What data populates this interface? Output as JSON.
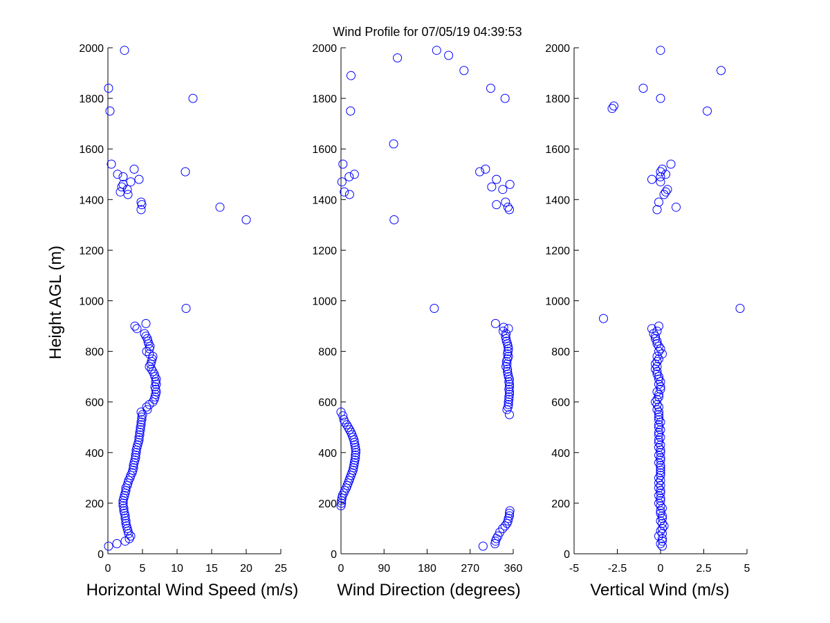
{
  "figure": {
    "title": "Wind Profile for  07/05/19 04:39:53",
    "marker_color": "#0000ff",
    "marker": "open-circle"
  },
  "chart_data": [
    {
      "type": "scatter",
      "id": "speed",
      "xlabel": "Horizontal Wind Speed (m/s)",
      "ylabel": "Height AGL (m)",
      "xlim": [
        0,
        25
      ],
      "ylim": [
        0,
        2000
      ],
      "xticks": [
        0,
        5,
        10,
        15,
        20,
        25
      ],
      "xtick_labels": [
        "0",
        "5",
        "10",
        "15",
        "20",
        "25"
      ],
      "yticks": [
        0,
        200,
        400,
        600,
        800,
        1000,
        1200,
        1400,
        1600,
        1800,
        2000
      ],
      "ytick_labels": [
        "0",
        "200",
        "400",
        "600",
        "800",
        "1000",
        "1200",
        "1400",
        "1600",
        "1800",
        "2000"
      ],
      "grid": false,
      "points": [
        [
          0.1,
          30
        ],
        [
          1.3,
          40
        ],
        [
          2.5,
          50
        ],
        [
          3.1,
          60
        ],
        [
          3.3,
          70
        ],
        [
          3.0,
          80
        ],
        [
          2.9,
          90
        ],
        [
          2.8,
          100
        ],
        [
          2.7,
          110
        ],
        [
          2.6,
          120
        ],
        [
          2.6,
          130
        ],
        [
          2.5,
          140
        ],
        [
          2.5,
          150
        ],
        [
          2.4,
          160
        ],
        [
          2.3,
          170
        ],
        [
          2.3,
          180
        ],
        [
          2.2,
          190
        ],
        [
          2.2,
          200
        ],
        [
          2.2,
          210
        ],
        [
          2.3,
          220
        ],
        [
          2.4,
          230
        ],
        [
          2.5,
          240
        ],
        [
          2.6,
          250
        ],
        [
          2.6,
          260
        ],
        [
          2.8,
          270
        ],
        [
          2.9,
          280
        ],
        [
          3.0,
          290
        ],
        [
          3.2,
          300
        ],
        [
          3.3,
          310
        ],
        [
          3.5,
          320
        ],
        [
          3.6,
          330
        ],
        [
          3.7,
          340
        ],
        [
          3.7,
          350
        ],
        [
          3.8,
          360
        ],
        [
          3.9,
          370
        ],
        [
          4.0,
          380
        ],
        [
          4.0,
          390
        ],
        [
          4.1,
          400
        ],
        [
          4.1,
          410
        ],
        [
          4.2,
          420
        ],
        [
          4.3,
          430
        ],
        [
          4.4,
          440
        ],
        [
          4.5,
          450
        ],
        [
          4.5,
          460
        ],
        [
          4.6,
          470
        ],
        [
          4.6,
          480
        ],
        [
          4.7,
          490
        ],
        [
          4.7,
          500
        ],
        [
          4.8,
          510
        ],
        [
          4.8,
          520
        ],
        [
          4.9,
          530
        ],
        [
          4.9,
          540
        ],
        [
          5.0,
          550
        ],
        [
          4.8,
          560
        ],
        [
          5.7,
          570
        ],
        [
          5.6,
          580
        ],
        [
          6.0,
          590
        ],
        [
          6.5,
          600
        ],
        [
          6.7,
          610
        ],
        [
          6.8,
          620
        ],
        [
          6.9,
          630
        ],
        [
          7.0,
          640
        ],
        [
          6.9,
          650
        ],
        [
          6.8,
          660
        ],
        [
          7.0,
          670
        ],
        [
          6.9,
          680
        ],
        [
          7.0,
          690
        ],
        [
          6.8,
          700
        ],
        [
          6.7,
          710
        ],
        [
          6.5,
          720
        ],
        [
          6.3,
          730
        ],
        [
          6.0,
          740
        ],
        [
          6.2,
          750
        ],
        [
          6.3,
          760
        ],
        [
          6.4,
          770
        ],
        [
          6.5,
          780
        ],
        [
          6.0,
          790
        ],
        [
          5.6,
          800
        ],
        [
          6.0,
          810
        ],
        [
          6.1,
          820
        ],
        [
          5.9,
          830
        ],
        [
          5.8,
          840
        ],
        [
          5.7,
          850
        ],
        [
          5.5,
          860
        ],
        [
          5.3,
          870
        ],
        [
          4.2,
          890
        ],
        [
          3.9,
          900
        ],
        [
          5.5,
          910
        ],
        [
          11.3,
          970
        ],
        [
          20.0,
          1320
        ],
        [
          4.8,
          1360
        ],
        [
          16.2,
          1370
        ],
        [
          4.9,
          1380
        ],
        [
          4.8,
          1390
        ],
        [
          2.9,
          1420
        ],
        [
          1.8,
          1430
        ],
        [
          2.8,
          1440
        ],
        [
          2.0,
          1450
        ],
        [
          2.2,
          1460
        ],
        [
          3.3,
          1470
        ],
        [
          4.5,
          1480
        ],
        [
          2.2,
          1490
        ],
        [
          1.4,
          1500
        ],
        [
          11.2,
          1510
        ],
        [
          3.8,
          1520
        ],
        [
          0.5,
          1540
        ],
        [
          0.3,
          1750
        ],
        [
          12.3,
          1800
        ],
        [
          0.1,
          1840
        ],
        [
          2.4,
          1990
        ]
      ]
    },
    {
      "type": "scatter",
      "id": "direction",
      "xlabel": "Wind Direction (degrees)",
      "ylabel": "",
      "xlim": [
        0,
        360
      ],
      "ylim": [
        0,
        2000
      ],
      "xticks": [
        0,
        90,
        180,
        270,
        360
      ],
      "xtick_labels": [
        "0",
        "90",
        "180",
        "270",
        "360"
      ],
      "yticks": [
        0,
        200,
        400,
        600,
        800,
        1000,
        1200,
        1400,
        1600,
        1800,
        2000
      ],
      "ytick_labels": [
        "0",
        "200",
        "400",
        "600",
        "800",
        "1000",
        "1200",
        "1400",
        "1600",
        "1800",
        "2000"
      ],
      "grid": false,
      "points": [
        [
          297,
          30
        ],
        [
          322,
          40
        ],
        [
          323,
          50
        ],
        [
          325,
          60
        ],
        [
          328,
          70
        ],
        [
          332,
          85
        ],
        [
          338,
          100
        ],
        [
          343,
          110
        ],
        [
          347,
          120
        ],
        [
          349,
          130
        ],
        [
          350,
          140
        ],
        [
          352,
          150
        ],
        [
          352,
          160
        ],
        [
          353,
          170
        ],
        [
          0,
          190
        ],
        [
          1,
          200
        ],
        [
          1,
          210
        ],
        [
          2,
          220
        ],
        [
          3,
          230
        ],
        [
          6,
          240
        ],
        [
          8,
          250
        ],
        [
          11,
          260
        ],
        [
          13,
          270
        ],
        [
          15,
          280
        ],
        [
          17,
          290
        ],
        [
          19,
          300
        ],
        [
          21,
          310
        ],
        [
          23,
          320
        ],
        [
          25,
          330
        ],
        [
          26,
          340
        ],
        [
          27,
          350
        ],
        [
          28,
          360
        ],
        [
          29,
          370
        ],
        [
          30,
          380
        ],
        [
          30,
          390
        ],
        [
          31,
          400
        ],
        [
          31,
          410
        ],
        [
          30,
          420
        ],
        [
          29,
          430
        ],
        [
          28,
          440
        ],
        [
          27,
          450
        ],
        [
          25,
          460
        ],
        [
          23,
          470
        ],
        [
          21,
          480
        ],
        [
          18,
          490
        ],
        [
          15,
          500
        ],
        [
          12,
          510
        ],
        [
          8,
          520
        ],
        [
          6,
          530
        ],
        [
          4,
          545
        ],
        [
          0,
          560
        ],
        [
          352,
          550
        ],
        [
          347,
          570
        ],
        [
          349,
          580
        ],
        [
          350,
          590
        ],
        [
          350,
          600
        ],
        [
          351,
          610
        ],
        [
          351,
          620
        ],
        [
          352,
          630
        ],
        [
          352,
          640
        ],
        [
          351,
          650
        ],
        [
          352,
          660
        ],
        [
          352,
          670
        ],
        [
          351,
          680
        ],
        [
          352,
          690
        ],
        [
          350,
          700
        ],
        [
          349,
          710
        ],
        [
          348,
          720
        ],
        [
          348,
          730
        ],
        [
          345,
          740
        ],
        [
          347,
          750
        ],
        [
          346,
          760
        ],
        [
          348,
          770
        ],
        [
          350,
          780
        ],
        [
          348,
          790
        ],
        [
          349,
          800
        ],
        [
          350,
          810
        ],
        [
          349,
          820
        ],
        [
          348,
          830
        ],
        [
          346,
          840
        ],
        [
          345,
          850
        ],
        [
          344,
          860
        ],
        [
          345,
          870
        ],
        [
          339,
          880
        ],
        [
          350,
          890
        ],
        [
          340,
          895
        ],
        [
          323,
          910
        ],
        [
          195,
          970
        ],
        [
          111,
          1320
        ],
        [
          352,
          1360
        ],
        [
          349,
          1370
        ],
        [
          325,
          1380
        ],
        [
          344,
          1390
        ],
        [
          18,
          1420
        ],
        [
          338,
          1440
        ],
        [
          7,
          1430
        ],
        [
          315,
          1450
        ],
        [
          353,
          1460
        ],
        [
          2,
          1470
        ],
        [
          325,
          1480
        ],
        [
          17,
          1490
        ],
        [
          28,
          1500
        ],
        [
          290,
          1510
        ],
        [
          302,
          1520
        ],
        [
          4,
          1540
        ],
        [
          110,
          1620
        ],
        [
          20,
          1750
        ],
        [
          343,
          1800
        ],
        [
          313,
          1840
        ],
        [
          21,
          1890
        ],
        [
          257,
          1910
        ],
        [
          118,
          1960
        ],
        [
          225,
          1970
        ],
        [
          200,
          1990
        ]
      ]
    },
    {
      "type": "scatter",
      "id": "vertical",
      "xlabel": "Vertical Wind (m/s)",
      "ylabel": "",
      "xlim": [
        -5,
        5
      ],
      "ylim": [
        0,
        2000
      ],
      "xticks": [
        -5,
        -2.5,
        0,
        2.5,
        5
      ],
      "xtick_labels": [
        "-5",
        "-2.5",
        "0",
        "2.5",
        "5"
      ],
      "yticks": [
        0,
        200,
        400,
        600,
        800,
        1000,
        1200,
        1400,
        1600,
        1800,
        2000
      ],
      "ytick_labels": [
        "0",
        "200",
        "400",
        "600",
        "800",
        "1000",
        "1200",
        "1400",
        "1600",
        "1800",
        "2000"
      ],
      "grid": false,
      "points": [
        [
          0.1,
          30
        ],
        [
          0.0,
          40
        ],
        [
          0.1,
          50
        ],
        [
          0.1,
          60
        ],
        [
          -0.1,
          70
        ],
        [
          0.1,
          80
        ],
        [
          0.0,
          90
        ],
        [
          0.1,
          100
        ],
        [
          0.2,
          110
        ],
        [
          0.1,
          120
        ],
        [
          0.0,
          130
        ],
        [
          0.1,
          140
        ],
        [
          0.1,
          150
        ],
        [
          0.0,
          160
        ],
        [
          0.0,
          170
        ],
        [
          0.1,
          180
        ],
        [
          0.0,
          190
        ],
        [
          -0.1,
          200
        ],
        [
          0.0,
          210
        ],
        [
          0.0,
          220
        ],
        [
          -0.1,
          230
        ],
        [
          0.0,
          240
        ],
        [
          0.0,
          250
        ],
        [
          -0.1,
          260
        ],
        [
          0.0,
          270
        ],
        [
          -0.1,
          280
        ],
        [
          0.0,
          290
        ],
        [
          -0.1,
          300
        ],
        [
          0.0,
          310
        ],
        [
          0.0,
          320
        ],
        [
          0.0,
          330
        ],
        [
          0.0,
          340
        ],
        [
          0.0,
          350
        ],
        [
          -0.1,
          360
        ],
        [
          0.0,
          370
        ],
        [
          0.0,
          380
        ],
        [
          -0.1,
          390
        ],
        [
          0.0,
          400
        ],
        [
          0.0,
          410
        ],
        [
          -0.1,
          420
        ],
        [
          0.0,
          430
        ],
        [
          -0.1,
          440
        ],
        [
          -0.1,
          450
        ],
        [
          0.0,
          460
        ],
        [
          -0.1,
          470
        ],
        [
          -0.1,
          480
        ],
        [
          0.0,
          490
        ],
        [
          -0.1,
          500
        ],
        [
          -0.1,
          510
        ],
        [
          0.0,
          520
        ],
        [
          -0.1,
          530
        ],
        [
          -0.1,
          540
        ],
        [
          -0.1,
          550
        ],
        [
          -0.1,
          560
        ],
        [
          -0.2,
          570
        ],
        [
          -0.1,
          580
        ],
        [
          -0.2,
          590
        ],
        [
          -0.3,
          600
        ],
        [
          -0.2,
          610
        ],
        [
          -0.1,
          620
        ],
        [
          -0.1,
          630
        ],
        [
          -0.2,
          640
        ],
        [
          0.0,
          650
        ],
        [
          0.0,
          660
        ],
        [
          -0.1,
          670
        ],
        [
          0.0,
          680
        ],
        [
          -0.1,
          690
        ],
        [
          -0.1,
          700
        ],
        [
          -0.2,
          710
        ],
        [
          -0.2,
          720
        ],
        [
          -0.3,
          730
        ],
        [
          -0.2,
          740
        ],
        [
          -0.3,
          750
        ],
        [
          -0.2,
          760
        ],
        [
          -0.1,
          770
        ],
        [
          -0.2,
          780
        ],
        [
          0.1,
          790
        ],
        [
          -0.1,
          800
        ],
        [
          0.0,
          810
        ],
        [
          -0.1,
          820
        ],
        [
          -0.2,
          830
        ],
        [
          -0.2,
          840
        ],
        [
          -0.3,
          850
        ],
        [
          -0.3,
          860
        ],
        [
          -0.4,
          870
        ],
        [
          -0.2,
          880
        ],
        [
          -0.5,
          890
        ],
        [
          -0.1,
          900
        ],
        [
          -3.3,
          930
        ],
        [
          4.6,
          970
        ],
        [
          -0.2,
          1360
        ],
        [
          0.9,
          1370
        ],
        [
          -0.1,
          1390
        ],
        [
          0.2,
          1420
        ],
        [
          0.4,
          1440
        ],
        [
          0.3,
          1430
        ],
        [
          0.0,
          1470
        ],
        [
          -0.5,
          1480
        ],
        [
          0.0,
          1490
        ],
        [
          0.3,
          1500
        ],
        [
          0.0,
          1510
        ],
        [
          0.1,
          1520
        ],
        [
          0.6,
          1540
        ],
        [
          -2.8,
          1760
        ],
        [
          -2.7,
          1770
        ],
        [
          2.7,
          1750
        ],
        [
          0.0,
          1800
        ],
        [
          -1.0,
          1840
        ],
        [
          3.5,
          1910
        ],
        [
          0.0,
          1990
        ]
      ]
    }
  ]
}
